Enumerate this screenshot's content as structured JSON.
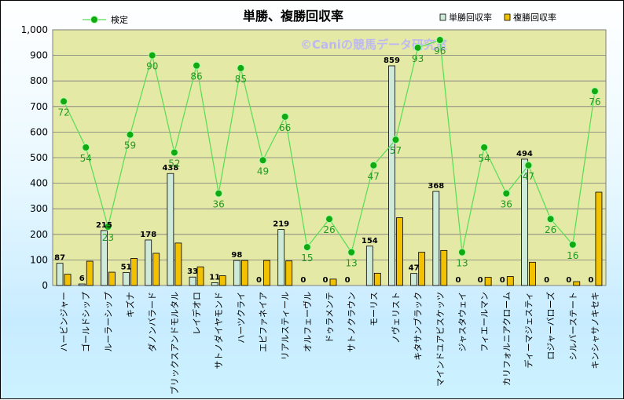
{
  "chart_data": {
    "type": "bar",
    "title": "単勝、複勝回収率",
    "watermark": "©Caniの競馬データ研究室",
    "categories": [
      "ハービンジャー",
      "ゴールドシップ",
      "ルーラーシップ",
      "キズナ",
      "ダノンバラード",
      "ブリックスアンドモルタル",
      "レイデオロ",
      "サトノダイヤモンド",
      "ハーツクライ",
      "エピファネイア",
      "リアルスティール",
      "オルフェーヴル",
      "ドゥラメンテ",
      "サトノクラウン",
      "モーリス",
      "ノヴェリスト",
      "キタサンブラック",
      "マインドユアビスケッツ",
      "ジャスタウェイ",
      "フィエールマン",
      "カリフォルニアクローム",
      "ディーマジェスティ",
      "ロジャーバローズ",
      "シルバーステート",
      "キンシャサノキセキ"
    ],
    "series": [
      {
        "name": "単勝回収率",
        "type": "bar",
        "color": "#cdebd8",
        "values": [
          87,
          6,
          215,
          51,
          178,
          438,
          33,
          11,
          98,
          0,
          219,
          0,
          0,
          0,
          154,
          859,
          47,
          368,
          0,
          0,
          0,
          494,
          0,
          0,
          0
        ],
        "labels": [
          "87",
          "6",
          "215",
          "51",
          "178",
          "438",
          "33",
          "11",
          "98",
          "0",
          "219",
          "0",
          "0",
          "0",
          "154",
          "859",
          "47",
          "368",
          "0",
          "0",
          "0",
          "494",
          "0",
          "0",
          "0"
        ]
      },
      {
        "name": "複勝回収率",
        "type": "bar",
        "color": "#f2c200",
        "values": [
          44,
          95,
          52,
          106,
          126,
          166,
          73,
          38,
          98,
          98,
          96,
          0,
          25,
          0,
          48,
          265,
          130,
          137,
          0,
          32,
          35,
          91,
          0,
          15,
          365
        ]
      },
      {
        "name": "検定",
        "type": "line",
        "color": "#22aa22",
        "values": [
          72,
          54,
          23,
          59,
          90,
          52,
          86,
          36,
          85,
          49,
          66,
          15,
          26,
          13,
          47,
          57,
          93,
          96,
          13,
          54,
          36,
          47,
          26,
          16,
          76
        ]
      }
    ],
    "legend_labels": [
      "検定",
      "単勝回収率",
      "複勝回収率"
    ],
    "y_axis": {
      "min": 0,
      "max": 1000,
      "step": 100,
      "tick_labels": [
        "0",
        "100",
        "200",
        "300",
        "400",
        "500",
        "600",
        "700",
        "800",
        "900",
        "1,000"
      ]
    },
    "secondary_axis": {
      "min": 0,
      "max": 100
    },
    "grid": true,
    "legend_position": "top"
  }
}
